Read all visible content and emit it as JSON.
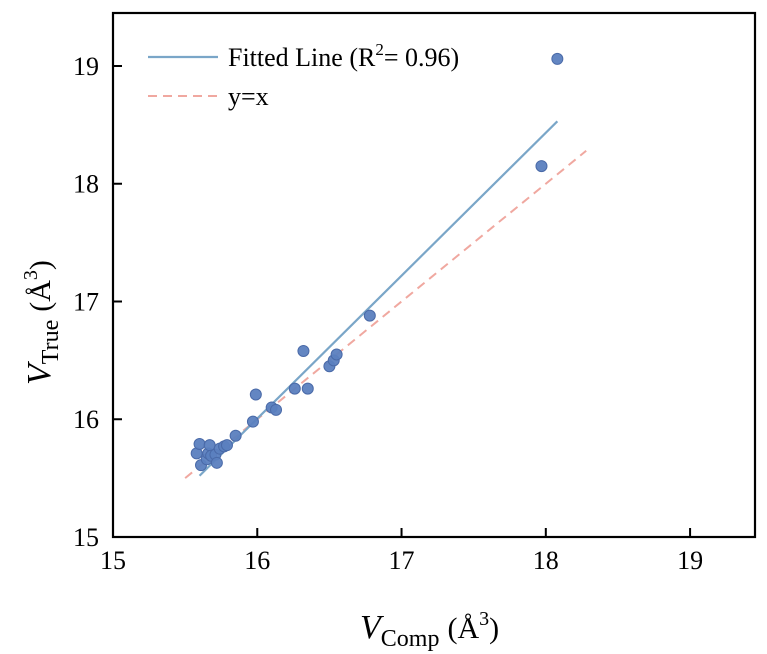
{
  "chart_data": {
    "type": "scatter",
    "title": "",
    "xlabel": {
      "symbol": "V",
      "subscript": "Comp",
      "unit": "(Å",
      "unit_sup": "3",
      "unit_close": ")"
    },
    "ylabel": {
      "symbol": "V",
      "subscript": "True",
      "unit": "(Å",
      "unit_sup": "3",
      "unit_close": ")"
    },
    "xlim": [
      15,
      19.45
    ],
    "ylim": [
      15,
      19.45
    ],
    "xticks": [
      15,
      16,
      17,
      18,
      19
    ],
    "yticks": [
      15,
      16,
      17,
      18,
      19
    ],
    "grid": false,
    "legend_position": "top-left",
    "colors": {
      "points": "#5b7fbf",
      "point_edge": "#4a6aa8",
      "fit": "#7aa6c8",
      "identity": "#f0a8a0"
    },
    "legend": {
      "fit_label": "Fitted Line (R",
      "fit_label_sup": "2",
      "fit_label_end": "= 0.96)",
      "identity_label": "y=x"
    },
    "fit_line": {
      "x": [
        15.6,
        18.08
      ],
      "y": [
        15.52,
        18.53
      ]
    },
    "identity_line": {
      "x": [
        15.5,
        18.28
      ],
      "y": [
        15.5,
        18.28
      ]
    },
    "series": [
      {
        "points": [
          {
            "x": 15.58,
            "y": 15.71
          },
          {
            "x": 15.6,
            "y": 15.79
          },
          {
            "x": 15.61,
            "y": 15.61
          },
          {
            "x": 15.65,
            "y": 15.66
          },
          {
            "x": 15.66,
            "y": 15.71
          },
          {
            "x": 15.67,
            "y": 15.78
          },
          {
            "x": 15.68,
            "y": 15.69
          },
          {
            "x": 15.71,
            "y": 15.7
          },
          {
            "x": 15.72,
            "y": 15.63
          },
          {
            "x": 15.74,
            "y": 15.75
          },
          {
            "x": 15.77,
            "y": 15.77
          },
          {
            "x": 15.79,
            "y": 15.78
          },
          {
            "x": 15.85,
            "y": 15.86
          },
          {
            "x": 15.97,
            "y": 15.98
          },
          {
            "x": 15.99,
            "y": 16.21
          },
          {
            "x": 16.1,
            "y": 16.1
          },
          {
            "x": 16.13,
            "y": 16.08
          },
          {
            "x": 16.26,
            "y": 16.26
          },
          {
            "x": 16.32,
            "y": 16.58
          },
          {
            "x": 16.35,
            "y": 16.26
          },
          {
            "x": 16.5,
            "y": 16.45
          },
          {
            "x": 16.53,
            "y": 16.5
          },
          {
            "x": 16.55,
            "y": 16.55
          },
          {
            "x": 16.78,
            "y": 16.88
          },
          {
            "x": 17.97,
            "y": 18.15
          },
          {
            "x": 18.08,
            "y": 19.06
          }
        ]
      }
    ]
  }
}
